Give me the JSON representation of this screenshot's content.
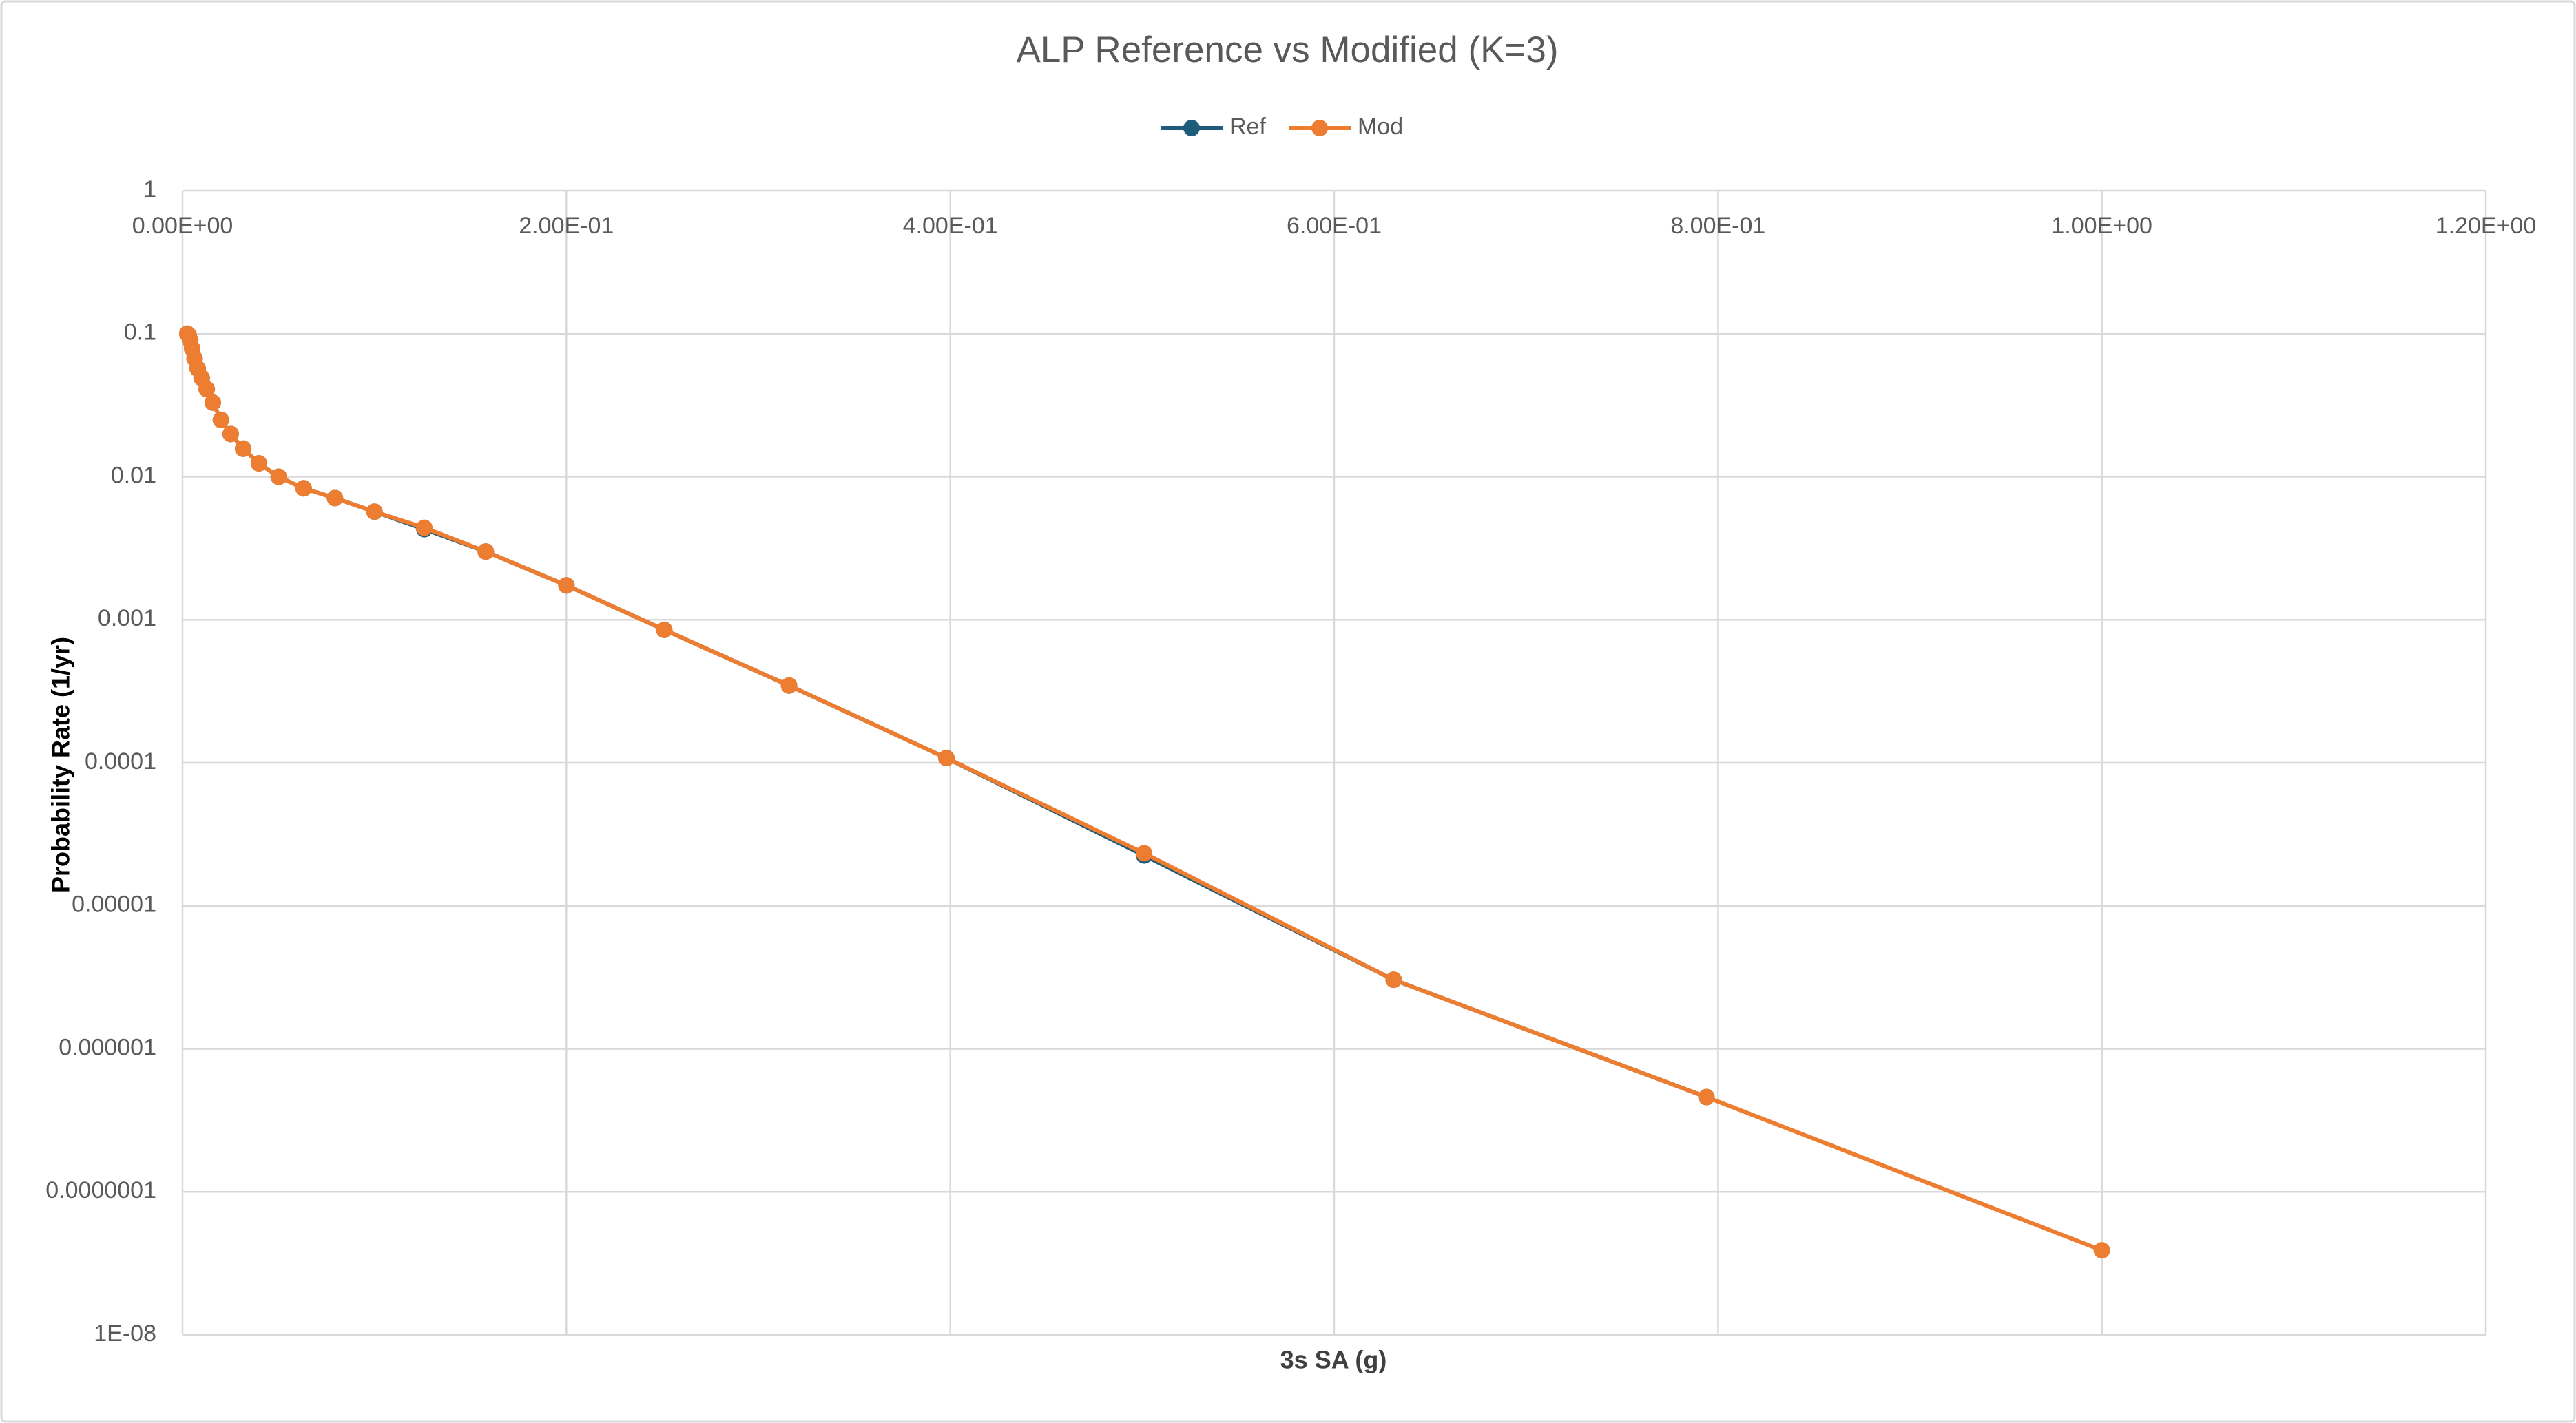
{
  "chart_data": {
    "type": "line",
    "title": "ALP Reference vs Modified (K=3)",
    "x_label": "3s SA (g)",
    "y_label": "Probability Rate (1/yr)",
    "x": [
      0.0025,
      0.0032,
      0.004,
      0.005,
      0.0063,
      0.0079,
      0.01,
      0.0126,
      0.0158,
      0.02,
      0.0251,
      0.0316,
      0.0398,
      0.0501,
      0.0631,
      0.0794,
      0.1,
      0.126,
      0.158,
      0.2,
      0.251,
      0.316,
      0.398,
      0.501,
      0.631,
      0.794,
      1.0
    ],
    "series": [
      {
        "name": "Ref",
        "color": "#1f5c7a",
        "values": [
          0.1,
          0.0975,
          0.09,
          0.079,
          0.067,
          0.057,
          0.049,
          0.041,
          0.033,
          0.025,
          0.0199,
          0.0157,
          0.0124,
          0.01,
          0.0083,
          0.0071,
          0.0057,
          0.0043,
          0.003,
          0.00174,
          0.00085,
          0.000347,
          0.000108,
          2.25e-05,
          3.04e-06,
          4.6e-07,
          null
        ]
      },
      {
        "name": "Mod",
        "color": "#ed7d31",
        "values": [
          0.1,
          0.0975,
          0.09,
          0.079,
          0.067,
          0.057,
          0.049,
          0.041,
          0.033,
          0.025,
          0.0199,
          0.0157,
          0.0124,
          0.01,
          0.0083,
          0.0071,
          0.0057,
          0.0044,
          0.003,
          0.00174,
          0.00085,
          0.000347,
          0.000108,
          2.33e-05,
          3.04e-06,
          4.6e-07,
          3.9e-08
        ]
      }
    ],
    "xlim": [
      0,
      1.2
    ],
    "xticks": [
      {
        "value": 0,
        "label": "0.00E+00"
      },
      {
        "value": 0.2,
        "label": "2.00E-01"
      },
      {
        "value": 0.4,
        "label": "4.00E-01"
      },
      {
        "value": 0.6,
        "label": "6.00E-01"
      },
      {
        "value": 0.8,
        "label": "8.00E-01"
      },
      {
        "value": 1.0,
        "label": "1.00E+00"
      },
      {
        "value": 1.2,
        "label": "1.20E+00"
      }
    ],
    "ylim": [
      1e-08,
      1
    ],
    "yticks": [
      1,
      0.1,
      0.01,
      0.001,
      0.0001,
      1e-05,
      1e-06,
      {
        "value": 1e-07,
        "label": "0.0000001"
      },
      {
        "value": 1e-08,
        "label": "1E-08"
      }
    ],
    "y_log": true,
    "grid": true,
    "legend": "top"
  }
}
